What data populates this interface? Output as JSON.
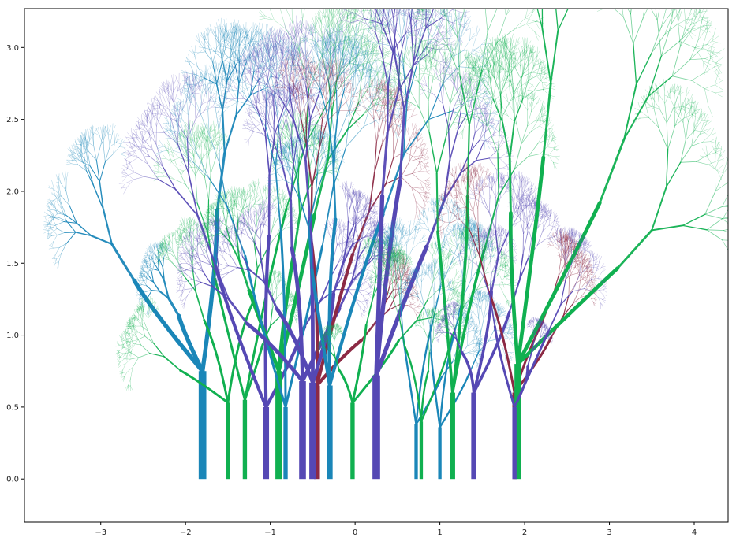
{
  "chart_data": {
    "type": "line",
    "title": "",
    "xlabel": "",
    "ylabel": "",
    "xlim": [
      -3.9,
      4.4
    ],
    "ylim": [
      -0.3,
      3.27
    ],
    "grid": false,
    "legend": "none",
    "x_ticks": [
      {
        "value": -3,
        "label": "−3"
      },
      {
        "value": -2,
        "label": "−2"
      },
      {
        "value": -1,
        "label": "−1"
      },
      {
        "value": 0,
        "label": "0"
      },
      {
        "value": 1,
        "label": "1"
      },
      {
        "value": 2,
        "label": "2"
      },
      {
        "value": 3,
        "label": "3"
      },
      {
        "value": 4,
        "label": "4"
      }
    ],
    "y_ticks": [
      {
        "value": 0.0,
        "label": "0.0"
      },
      {
        "value": 0.5,
        "label": "0.5"
      },
      {
        "value": 1.0,
        "label": "1.0"
      },
      {
        "value": 1.5,
        "label": "1.5"
      },
      {
        "value": 2.0,
        "label": "2.0"
      },
      {
        "value": 2.5,
        "label": "2.5"
      },
      {
        "value": 3.0,
        "label": "3.0"
      }
    ],
    "colors": {
      "blue": "#1a86b8",
      "green": "#10b050",
      "purple": "#5548b4",
      "red": "#8c2a44"
    },
    "trees": [
      {
        "color": "blue",
        "x": -1.8,
        "trunk_height": 0.75,
        "trunk_width": 0.09,
        "crown": [
          [
            -2.95,
            1.65
          ],
          [
            -1.55,
            2.35
          ],
          [
            -2.2,
            1.3
          ]
        ]
      },
      {
        "color": "green",
        "x": -1.5,
        "trunk_height": 0.53,
        "trunk_width": 0.05,
        "crown": [
          [
            -2.3,
            0.85
          ],
          [
            -1.1,
            1.5
          ],
          [
            -1.9,
            1.35
          ]
        ]
      },
      {
        "color": "green",
        "x": -1.3,
        "trunk_height": 0.55,
        "trunk_width": 0.05,
        "crown": [
          [
            -0.6,
            2.45
          ],
          [
            -1.0,
            1.1
          ],
          [
            -1.8,
            1.75
          ]
        ]
      },
      {
        "color": "purple",
        "x": -1.05,
        "trunk_height": 0.5,
        "trunk_width": 0.07,
        "crown": [
          [
            -1.9,
            1.9
          ],
          [
            -0.4,
            1.3
          ],
          [
            -1.0,
            2.2
          ]
        ]
      },
      {
        "color": "green",
        "x": -0.9,
        "trunk_height": 0.75,
        "trunk_width": 0.08,
        "crown": [
          [
            -0.65,
            1.9
          ],
          [
            -1.4,
            1.55
          ],
          [
            -0.3,
            2.3
          ]
        ]
      },
      {
        "color": "blue",
        "x": -0.82,
        "trunk_height": 0.5,
        "trunk_width": 0.05,
        "crown": [
          [
            -0.9,
            2.25
          ],
          [
            -0.2,
            2.1
          ],
          [
            -1.5,
            2.0
          ]
        ]
      },
      {
        "color": "purple",
        "x": -0.62,
        "trunk_height": 0.68,
        "trunk_width": 0.08,
        "crown": [
          [
            -1.55,
            1.25
          ],
          [
            -0.8,
            2.0
          ],
          [
            0.0,
            1.4
          ]
        ]
      },
      {
        "color": "red",
        "x": -0.45,
        "trunk_height": 0.65,
        "trunk_width": 0.07,
        "crown": [
          [
            0.15,
            1.95
          ],
          [
            -0.55,
            2.1
          ],
          [
            0.3,
            1.1
          ]
        ]
      },
      {
        "color": "purple",
        "x": -0.5,
        "trunk_height": 0.67,
        "trunk_width": 0.08,
        "crown": [
          [
            -0.15,
            1.55
          ],
          [
            -1.1,
            1.4
          ],
          [
            -0.55,
            2.3
          ]
        ]
      },
      {
        "color": "blue",
        "x": -0.3,
        "trunk_height": 0.65,
        "trunk_width": 0.07,
        "crown": [
          [
            -0.2,
            2.3
          ],
          [
            0.6,
            2.35
          ],
          [
            -0.6,
            1.8
          ]
        ]
      },
      {
        "color": "green",
        "x": -0.03,
        "trunk_height": 0.53,
        "trunk_width": 0.05,
        "crown": [
          [
            0.75,
            1.15
          ],
          [
            0.2,
            1.3
          ],
          [
            -0.25,
            0.85
          ]
        ]
      },
      {
        "color": "purple",
        "x": 0.25,
        "trunk_height": 0.72,
        "trunk_width": 0.09,
        "crown": [
          [
            0.65,
            2.65
          ],
          [
            0.35,
            2.5
          ],
          [
            1.1,
            2.0
          ]
        ]
      },
      {
        "color": "blue",
        "x": 0.72,
        "trunk_height": 0.38,
        "trunk_width": 0.04,
        "crown": [
          [
            1.0,
            1.4
          ],
          [
            0.5,
            1.25
          ],
          [
            1.15,
            0.85
          ]
        ]
      },
      {
        "color": "green",
        "x": 0.78,
        "trunk_height": 0.4,
        "trunk_width": 0.04,
        "crown": [
          [
            0.9,
            0.9
          ],
          [
            1.3,
            1.25
          ],
          [
            0.5,
            1.15
          ]
        ]
      },
      {
        "color": "blue",
        "x": 1.0,
        "trunk_height": 0.36,
        "trunk_width": 0.04,
        "crown": [
          [
            1.5,
            0.9
          ],
          [
            1.25,
            1.3
          ],
          [
            0.85,
            1.1
          ]
        ]
      },
      {
        "color": "green",
        "x": 1.15,
        "trunk_height": 0.6,
        "trunk_width": 0.06,
        "crown": [
          [
            1.4,
            2.55
          ],
          [
            0.9,
            2.2
          ],
          [
            1.7,
            2.05
          ]
        ]
      },
      {
        "color": "purple",
        "x": 1.4,
        "trunk_height": 0.6,
        "trunk_width": 0.06,
        "crown": [
          [
            1.7,
            1.6
          ],
          [
            2.0,
            1.4
          ],
          [
            1.2,
            1.0
          ]
        ]
      },
      {
        "color": "red",
        "x": 1.88,
        "trunk_height": 0.6,
        "trunk_width": 0.05,
        "crown": [
          [
            2.35,
            1.3
          ],
          [
            1.45,
            1.6
          ],
          [
            2.5,
            1.15
          ]
        ]
      },
      {
        "color": "green",
        "x": 1.92,
        "trunk_height": 0.8,
        "trunk_width": 0.08,
        "crown": [
          [
            3.6,
            1.75
          ],
          [
            2.35,
            2.85
          ],
          [
            3.3,
            2.4
          ],
          [
            1.8,
            2.3
          ]
        ]
      },
      {
        "color": "purple",
        "x": 1.88,
        "trunk_height": 0.5,
        "trunk_width": 0.05,
        "crown": [
          [
            2.45,
            1.25
          ],
          [
            1.55,
            1.3
          ],
          [
            2.1,
            0.9
          ]
        ]
      }
    ]
  }
}
